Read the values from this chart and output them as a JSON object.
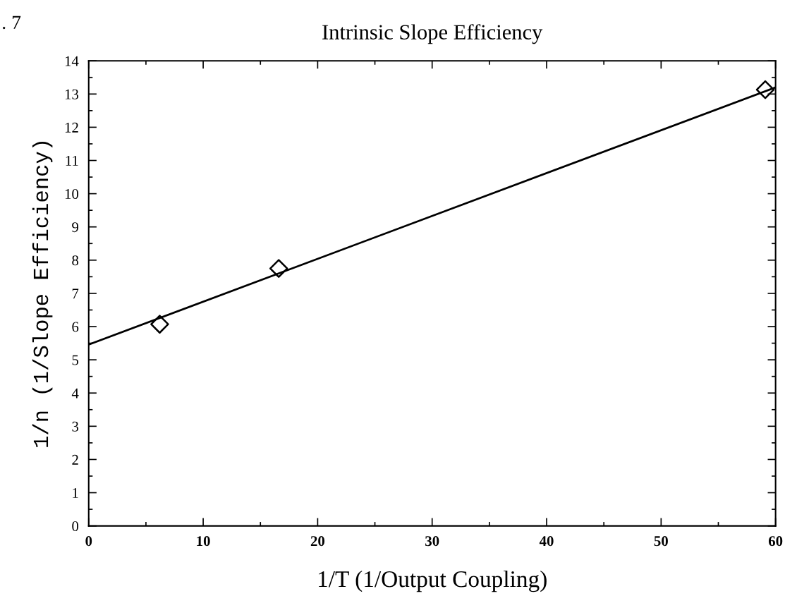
{
  "chart_data": {
    "type": "scatter",
    "title": "Intrinsic Slope Efficiency",
    "xlabel": "1/T (1/Output Coupling)",
    "ylabel": "1/n (1/Slope Efficiency)",
    "annotations": [
      ". 7"
    ],
    "marker": "diamond",
    "grid": false,
    "legend": false,
    "xlim": [
      0,
      60
    ],
    "xticks": [
      0,
      10,
      20,
      30,
      40,
      50,
      60
    ],
    "ylim": [
      0,
      14
    ],
    "yticks": [
      0,
      1,
      2,
      3,
      4,
      5,
      6,
      7,
      8,
      9,
      10,
      11,
      12,
      13,
      14
    ],
    "series": [
      {
        "color": "#000000",
        "x": [
          6.2,
          16.6,
          59.1
        ],
        "values": [
          6.07,
          7.75,
          13.13
        ]
      },
      {
        "type": "line",
        "color": "#000000",
        "marker": "none",
        "line_style": "solid",
        "x": [
          0,
          60
        ],
        "values": [
          5.46,
          13.2
        ]
      }
    ]
  }
}
